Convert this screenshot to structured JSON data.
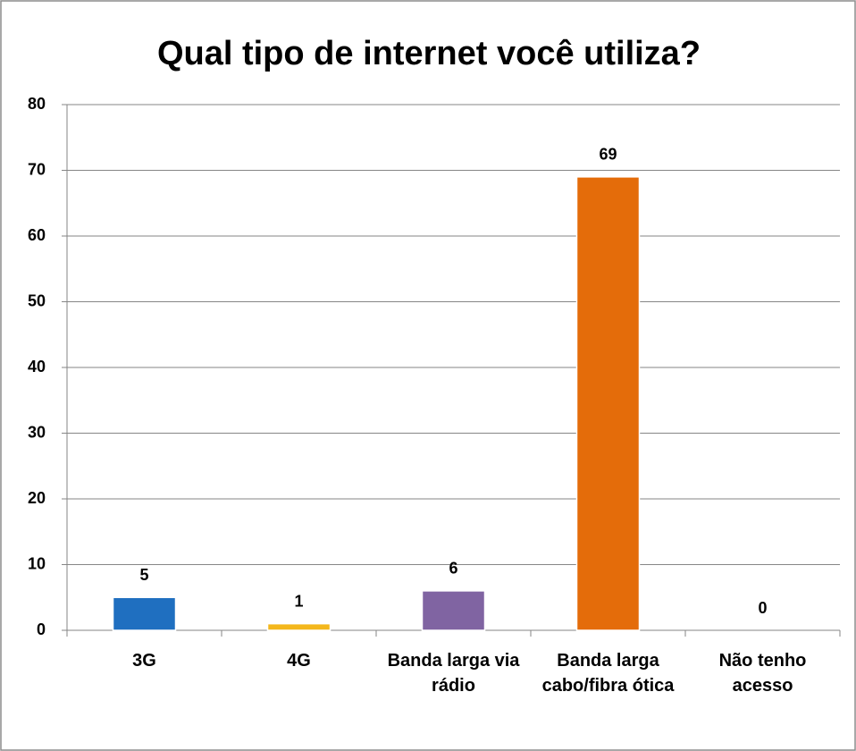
{
  "chart_data": {
    "type": "bar",
    "title": "Qual tipo de internet você utiliza?",
    "categories": [
      "3G",
      "4G",
      "Banda larga via rádio",
      "Banda larga cabo/fibra ótica",
      "Não tenho acesso"
    ],
    "values": [
      5,
      1,
      6,
      69,
      0
    ],
    "colors": [
      "#1f6fc0",
      "#f4b71c",
      "#8064a2",
      "#e46c0a",
      "#4bacc6"
    ],
    "ylim": [
      0,
      80
    ],
    "yticks": [
      0,
      10,
      20,
      30,
      40,
      50,
      60,
      70,
      80
    ],
    "grid": true
  }
}
